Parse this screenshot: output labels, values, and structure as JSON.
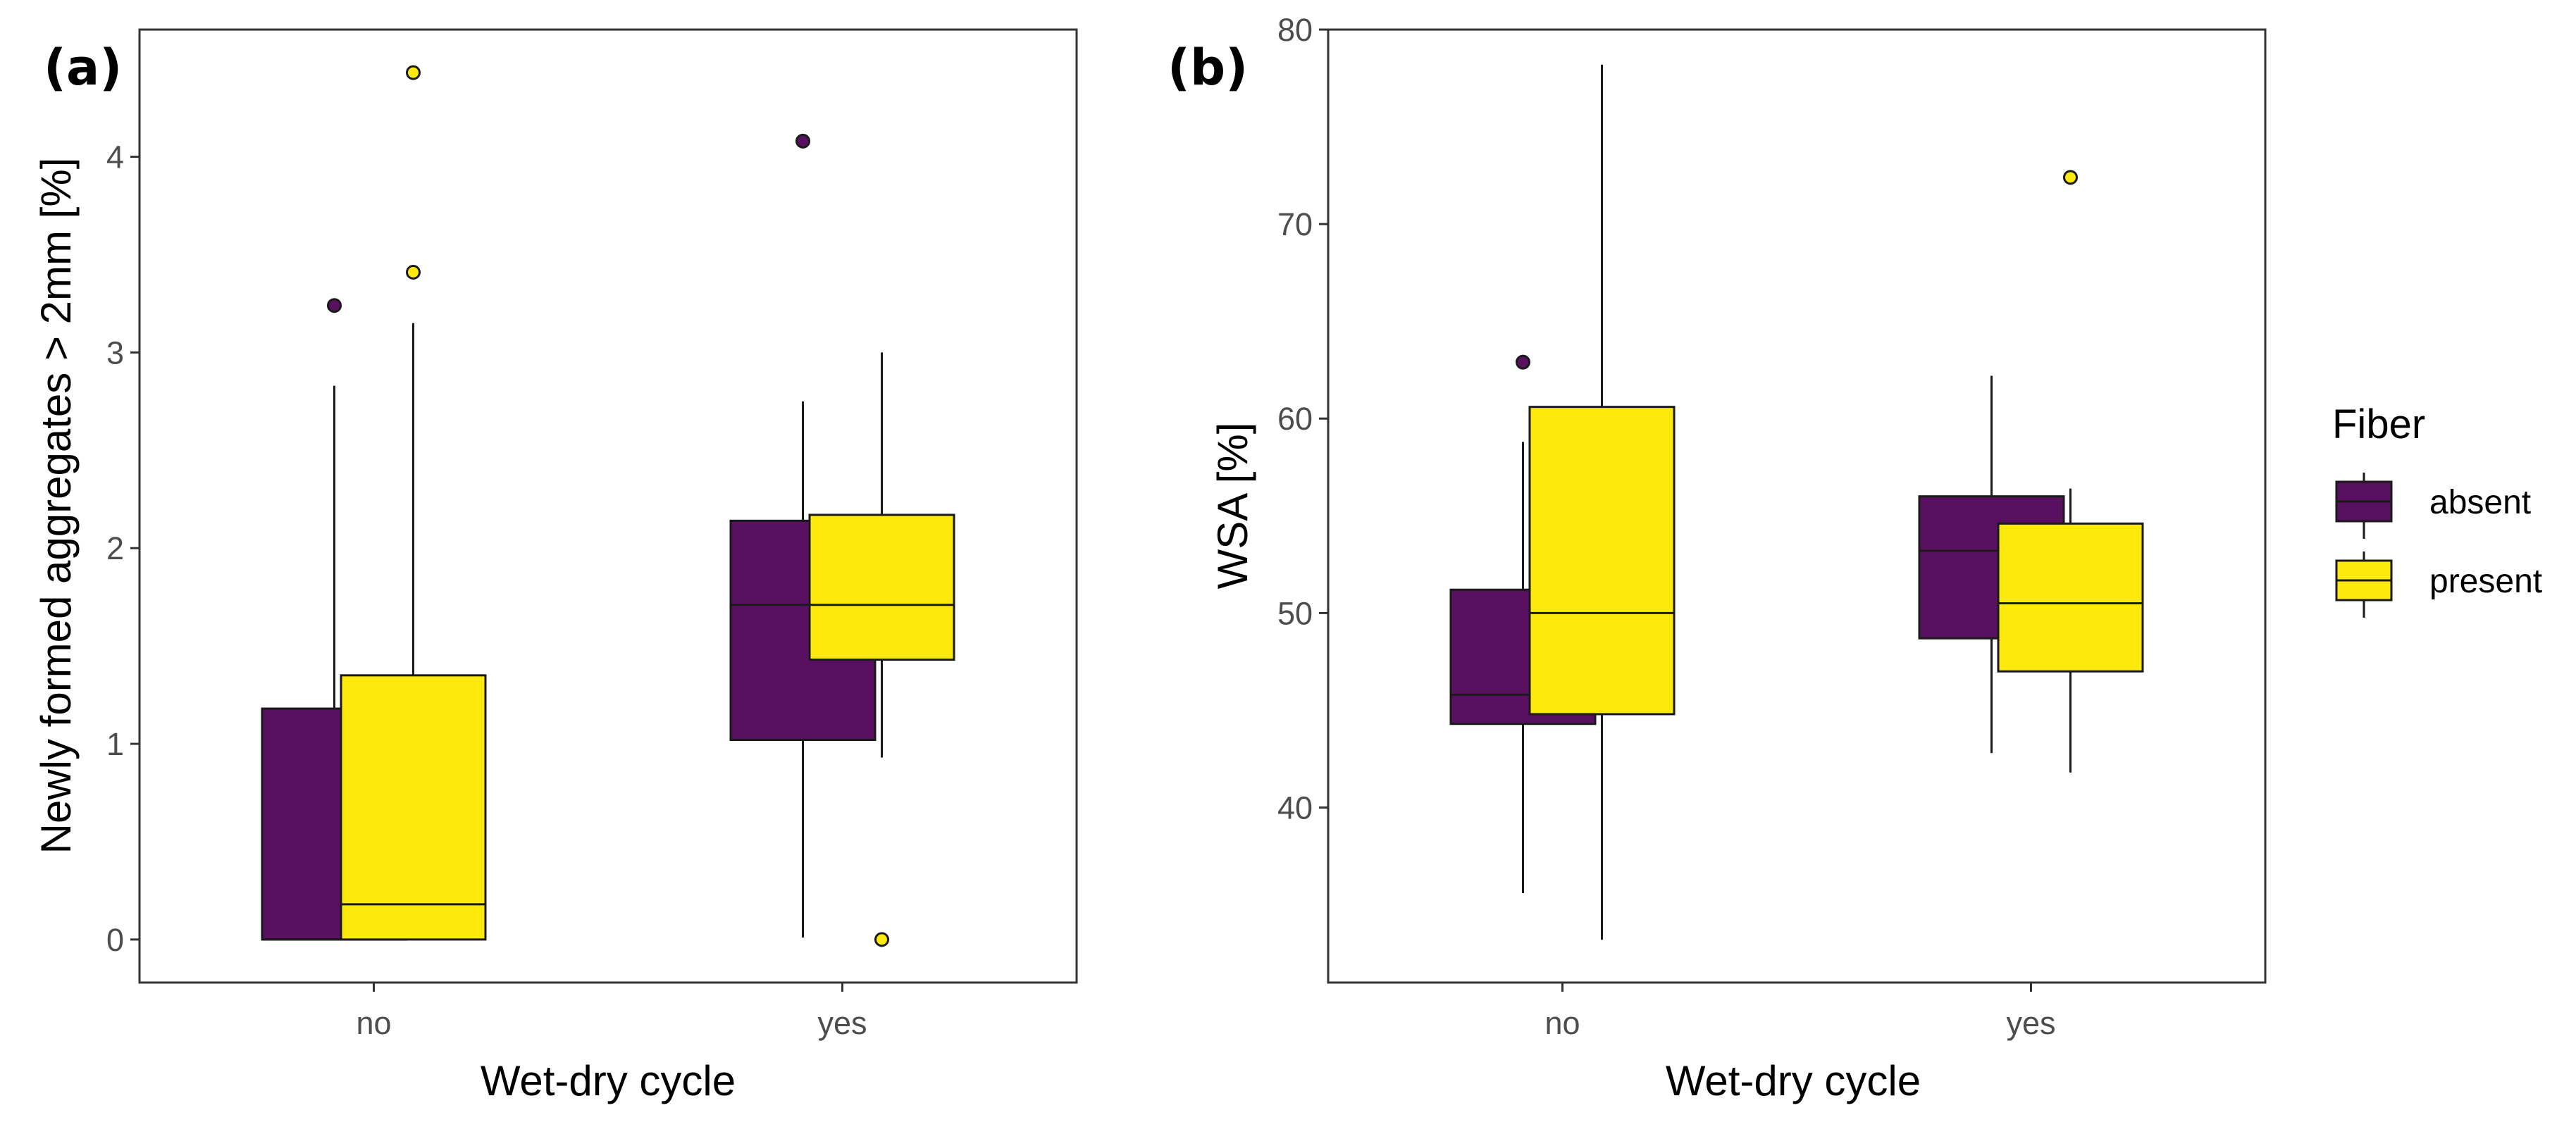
{
  "chart_data": [
    {
      "type": "boxplot",
      "tag": "(a)",
      "xlabel": "Wet-dry cycle",
      "ylabel": "Newly formed aggregates > 2mm [%]",
      "categories": [
        "no",
        "yes"
      ],
      "ylim": [
        -0.22,
        4.65
      ],
      "yticks": [
        0,
        1,
        2,
        3,
        4
      ],
      "grid": false,
      "series": [
        {
          "name": "absent",
          "boxes": [
            {
              "category": "no",
              "lower_whisker": 0.0,
              "q1": 0.0,
              "median": 0.0,
              "q3": 1.18,
              "upper_whisker": 2.83,
              "outliers": [
                3.24
              ]
            },
            {
              "category": "yes",
              "lower_whisker": 0.01,
              "q1": 1.02,
              "median": 1.71,
              "q3": 2.14,
              "upper_whisker": 2.75,
              "outliers": [
                4.08
              ]
            }
          ]
        },
        {
          "name": "present",
          "boxes": [
            {
              "category": "no",
              "lower_whisker": 0.0,
              "q1": 0.0,
              "median": 0.18,
              "q3": 1.35,
              "upper_whisker": 3.15,
              "outliers": [
                3.41,
                4.43
              ]
            },
            {
              "category": "yes",
              "lower_whisker": 0.93,
              "q1": 1.43,
              "median": 1.71,
              "q3": 2.17,
              "upper_whisker": 3.0,
              "outliers": [
                0.0
              ]
            }
          ]
        }
      ]
    },
    {
      "type": "boxplot",
      "tag": "(b)",
      "xlabel": "Wet-dry cycle",
      "ylabel": "WSA [%]",
      "categories": [
        "no",
        "yes"
      ],
      "ylim": [
        31.0,
        80.0
      ],
      "yticks": [
        40,
        50,
        60,
        70,
        80
      ],
      "grid": false,
      "series": [
        {
          "name": "absent",
          "boxes": [
            {
              "category": "no",
              "lower_whisker": 35.6,
              "q1": 44.3,
              "median": 45.8,
              "q3": 51.2,
              "upper_whisker": 58.8,
              "outliers": [
                62.9
              ]
            },
            {
              "category": "yes",
              "lower_whisker": 42.8,
              "q1": 48.7,
              "median": 53.2,
              "q3": 56.0,
              "upper_whisker": 62.2,
              "outliers": []
            }
          ]
        },
        {
          "name": "present",
          "boxes": [
            {
              "category": "no",
              "lower_whisker": 33.2,
              "q1": 44.8,
              "median": 50.0,
              "q3": 60.6,
              "upper_whisker": 78.2,
              "outliers": []
            },
            {
              "category": "yes",
              "lower_whisker": 41.8,
              "q1": 47.0,
              "median": 50.5,
              "q3": 54.6,
              "upper_whisker": 56.4,
              "outliers": [
                72.4
              ]
            }
          ]
        }
      ]
    }
  ],
  "legend": {
    "title": "Fiber",
    "position": "right",
    "items": [
      {
        "label": "absent",
        "color": "#5a1060"
      },
      {
        "label": "present",
        "color": "#fde90c"
      }
    ]
  },
  "colors": {
    "absent": "#5a1060",
    "present": "#fde90c",
    "outline": "#1a1a1a",
    "frame": "#333333"
  }
}
